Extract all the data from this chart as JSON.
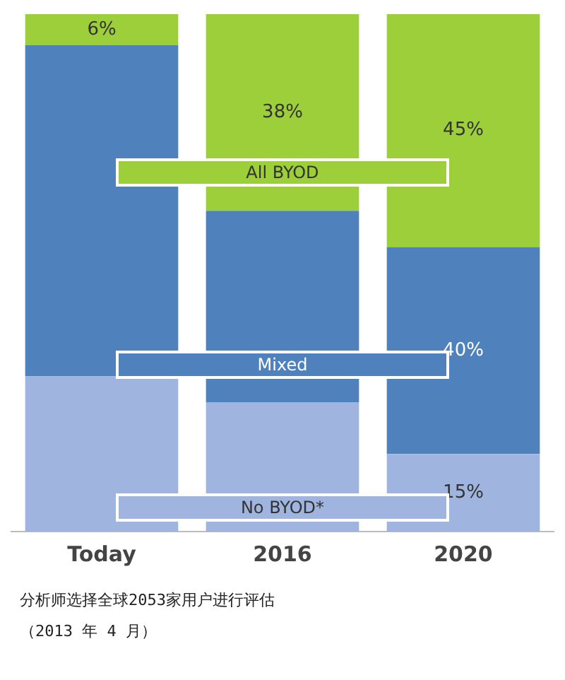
{
  "chart_data": {
    "type": "bar",
    "stacked": true,
    "categories": [
      "Today",
      "2016",
      "2020"
    ],
    "series": [
      {
        "name": "No BYOD*",
        "color": "#9fb5e0",
        "values": [
          30,
          25,
          15
        ],
        "value_labels": [
          null,
          null,
          "15%"
        ]
      },
      {
        "name": "Mixed",
        "color": "#4f81bd",
        "values": [
          64,
          37,
          40
        ],
        "value_labels": [
          null,
          null,
          "40%"
        ]
      },
      {
        "name": "All BYOD",
        "color": "#9dcf3a",
        "values": [
          6,
          38,
          45
        ],
        "value_labels": [
          "6%",
          "38%",
          "45%"
        ]
      }
    ],
    "tick_labels": "x",
    "grid": false,
    "legend": false,
    "annotations": [
      "分析师选择全球2053家用户进行评估",
      "（2013 年 4 月）"
    ]
  }
}
